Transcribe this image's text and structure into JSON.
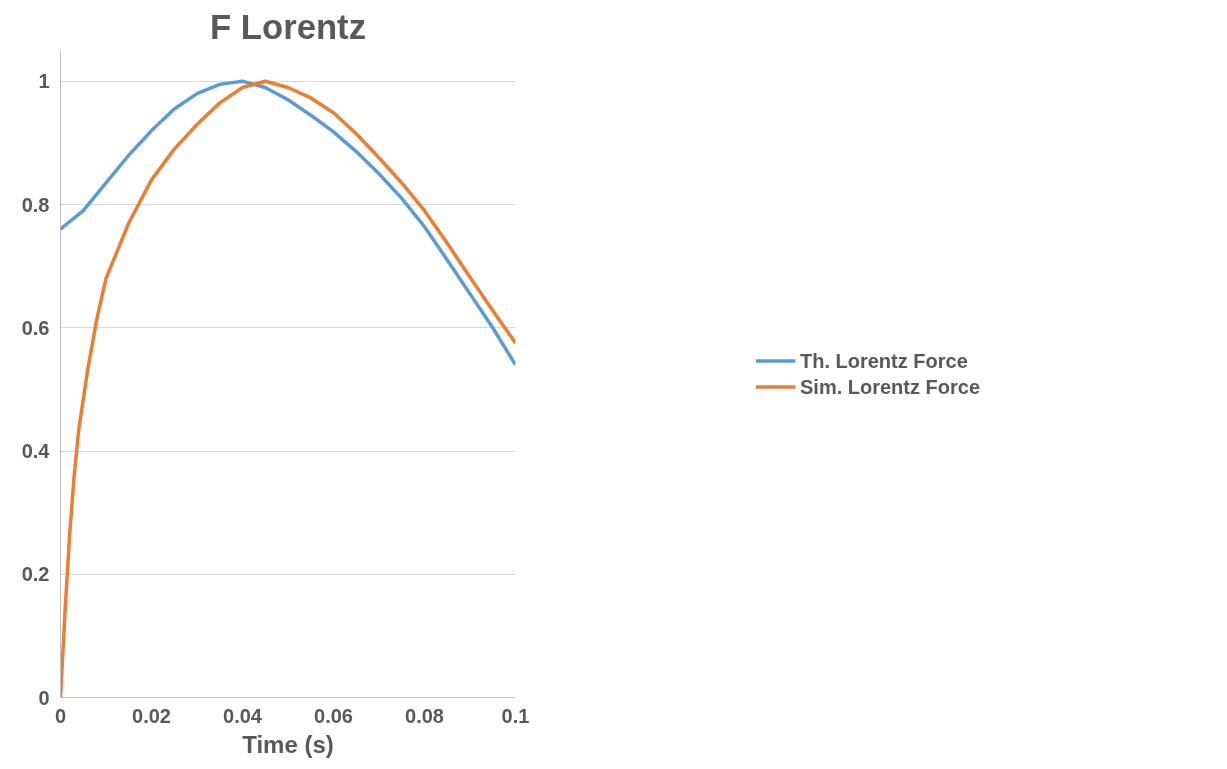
{
  "chart_data": {
    "type": "line",
    "title": "F Lorentz",
    "xlabel": "Time (s)",
    "xlim": [
      0,
      0.1
    ],
    "xticks": [
      0,
      0.02,
      0.04,
      0.06,
      0.08,
      0.1
    ],
    "ylim": [
      0,
      1.05
    ],
    "yticks": [
      0,
      0.2,
      0.4,
      0.6,
      0.8,
      1
    ],
    "grid": "y",
    "legend": "right",
    "marker": "none",
    "line_style": "solid",
    "series": [
      {
        "name": "Th. Lorentz Force",
        "color": "#5b9bd5",
        "x": [
          0,
          0.005,
          0.01,
          0.015,
          0.02,
          0.025,
          0.03,
          0.035,
          0.04,
          0.045,
          0.05,
          0.055,
          0.06,
          0.065,
          0.07,
          0.075,
          0.08,
          0.085,
          0.09,
          0.095,
          0.1
        ],
        "values": [
          0.76,
          0.79,
          0.835,
          0.88,
          0.92,
          0.955,
          0.98,
          0.995,
          1.0,
          0.99,
          0.97,
          0.945,
          0.918,
          0.886,
          0.85,
          0.81,
          0.764,
          0.71,
          0.655,
          0.6,
          0.54
        ]
      },
      {
        "name": "Sim. Lorentz Force",
        "color": "#ed7d31",
        "x": [
          0,
          0.001,
          0.002,
          0.003,
          0.004,
          0.006,
          0.008,
          0.01,
          0.015,
          0.02,
          0.025,
          0.03,
          0.035,
          0.04,
          0.045,
          0.05,
          0.055,
          0.06,
          0.065,
          0.07,
          0.075,
          0.08,
          0.085,
          0.09,
          0.095,
          0.1
        ],
        "values": [
          0,
          0.14,
          0.264,
          0.36,
          0.434,
          0.533,
          0.615,
          0.68,
          0.77,
          0.84,
          0.89,
          0.93,
          0.965,
          0.99,
          1.0,
          0.99,
          0.973,
          0.949,
          0.915,
          0.876,
          0.835,
          0.79,
          0.737,
          0.682,
          0.628,
          0.575
        ]
      }
    ]
  }
}
